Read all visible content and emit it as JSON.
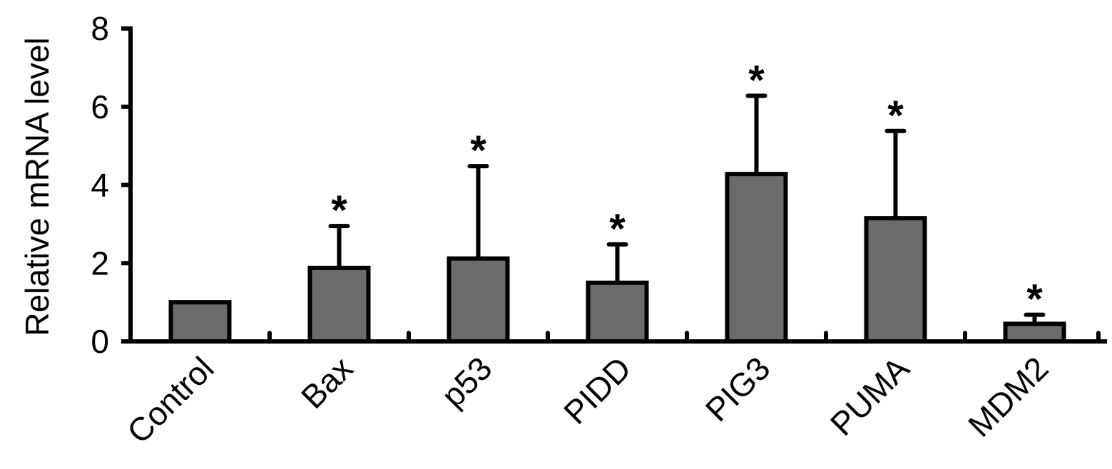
{
  "chart_data": {
    "type": "bar",
    "title": "",
    "xlabel": "",
    "ylabel": "Relative mRNA level",
    "ylim": [
      0,
      8
    ],
    "yticks": [
      0,
      2,
      4,
      6,
      8
    ],
    "ytick_labels": [
      "0",
      "2",
      "4",
      "6",
      "8"
    ],
    "categories": [
      "Control",
      "Bax",
      "p53",
      "PIDD",
      "PIG3",
      "PUMA",
      "MDM2"
    ],
    "values": [
      1.0,
      1.88,
      2.12,
      1.5,
      4.28,
      3.15,
      0.45
    ],
    "error_upper": [
      1.0,
      2.95,
      4.48,
      2.48,
      6.28,
      5.38,
      0.68
    ],
    "annotations": [
      "",
      "*",
      "*",
      "*",
      "*",
      "*",
      "*"
    ],
    "grid": false,
    "legend": "none",
    "colors": {
      "bar_fill": "#6b6b6b",
      "bar_stroke": "#000000",
      "axis": "#000000",
      "text": "#000000"
    }
  }
}
